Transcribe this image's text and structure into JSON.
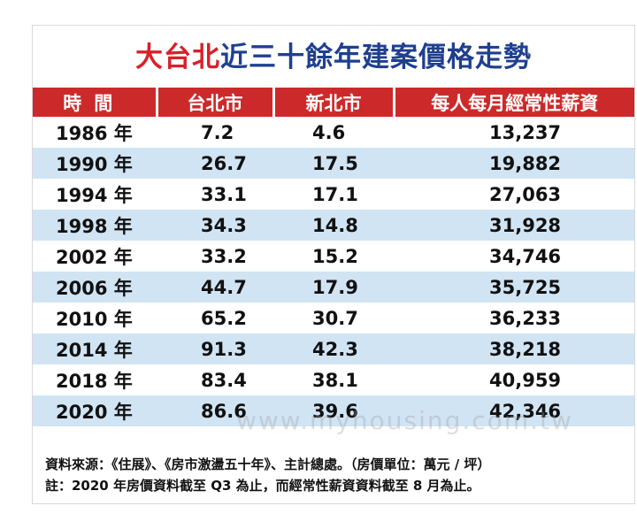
{
  "title": {
    "part1": "大台北",
    "part2": "近三十餘年建案價格走勢"
  },
  "table": {
    "headers": [
      "時間",
      "台北市",
      "新北市",
      "每人每月經常性薪資"
    ],
    "rows": [
      {
        "year": "1986 年",
        "taipei": "7.2",
        "new_taipei": "4.6",
        "wage": "13,237"
      },
      {
        "year": "1990 年",
        "taipei": "26.7",
        "new_taipei": "17.5",
        "wage": "19,882"
      },
      {
        "year": "1994 年",
        "taipei": "33.1",
        "new_taipei": "17.1",
        "wage": "27,063"
      },
      {
        "year": "1998 年",
        "taipei": "34.3",
        "new_taipei": "14.8",
        "wage": "31,928"
      },
      {
        "year": "2002 年",
        "taipei": "33.2",
        "new_taipei": "15.2",
        "wage": "34,746"
      },
      {
        "year": "2006 年",
        "taipei": "44.7",
        "new_taipei": "17.9",
        "wage": "35,725"
      },
      {
        "year": "2010 年",
        "taipei": "65.2",
        "new_taipei": "30.7",
        "wage": "36,233"
      },
      {
        "year": "2014 年",
        "taipei": "91.3",
        "new_taipei": "42.3",
        "wage": "38,218"
      },
      {
        "year": "2018 年",
        "taipei": "83.4",
        "new_taipei": "38.1",
        "wage": "40,959"
      },
      {
        "year": "2020 年",
        "taipei": "86.6",
        "new_taipei": "39.6",
        "wage": "42,346"
      }
    ]
  },
  "watermark": "www.myhousing.com.tw",
  "notes": {
    "source": "資料來源：《住展》、《房市激盪五十年》、主計總處。（房價單位：萬元 / 坪）",
    "remark": "註：2020 年房價資料截至 Q3 為止，而經常性薪資資料截至 8 月為止。"
  },
  "colors": {
    "title_red": "#d9202a",
    "title_blue": "#1f3f8f",
    "header_bg": "#cc2a2a",
    "alt_row_bg": "#d0e4f4"
  }
}
